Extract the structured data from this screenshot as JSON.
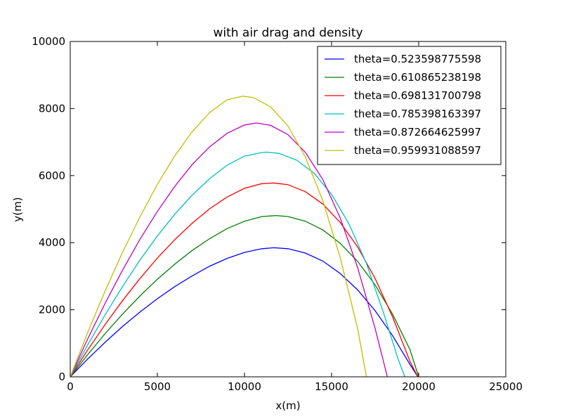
{
  "chart_data": {
    "type": "line",
    "title": "with air drag and density",
    "xlabel": "x(m)",
    "ylabel": "y(m)",
    "xlim": [
      0,
      25000
    ],
    "ylim": [
      0,
      10000
    ],
    "xticks": [
      0,
      5000,
      10000,
      15000,
      20000,
      25000
    ],
    "yticks": [
      0,
      2000,
      4000,
      6000,
      8000,
      10000
    ],
    "xtick_labels": [
      "0",
      "5000",
      "10000",
      "15000",
      "20000",
      "25000"
    ],
    "ytick_labels": [
      "0",
      "2000",
      "4000",
      "6000",
      "8000",
      "10000"
    ],
    "grid": false,
    "legend_position": "top-right",
    "series": [
      {
        "name": "theta=0.523598775598",
        "color": "#0000ff",
        "x": [
          0,
          1000,
          2000,
          3000,
          4000,
          5000,
          6000,
          7000,
          8000,
          9000,
          10000,
          11000,
          11700,
          12500,
          13500,
          14500,
          15500,
          16500,
          17500,
          18500,
          19500,
          19950
        ],
        "y": [
          0,
          530,
          1030,
          1500,
          1930,
          2330,
          2690,
          3010,
          3300,
          3530,
          3710,
          3820,
          3850,
          3820,
          3690,
          3450,
          3080,
          2590,
          1970,
          1230,
          370,
          0
        ]
      },
      {
        "name": "theta=0.610865238198",
        "color": "#008000",
        "x": [
          0,
          1000,
          2000,
          3000,
          4000,
          5000,
          6000,
          7000,
          8000,
          9000,
          10000,
          11000,
          11800,
          12500,
          13500,
          14500,
          15500,
          16500,
          17500,
          18500,
          19500,
          20000
        ],
        "y": [
          0,
          660,
          1290,
          1870,
          2410,
          2910,
          3360,
          3770,
          4120,
          4420,
          4640,
          4780,
          4810,
          4780,
          4640,
          4380,
          3980,
          3440,
          2740,
          1870,
          810,
          0
        ]
      },
      {
        "name": "theta=0.698131700798",
        "color": "#ff0000",
        "x": [
          0,
          1000,
          2000,
          3000,
          4000,
          5000,
          6000,
          7000,
          8000,
          9000,
          10000,
          11000,
          11700,
          12500,
          13500,
          14500,
          15500,
          16500,
          17500,
          18500,
          19500,
          19950
        ],
        "y": [
          0,
          800,
          1560,
          2270,
          2930,
          3540,
          4090,
          4580,
          5010,
          5360,
          5620,
          5760,
          5780,
          5730,
          5520,
          5150,
          4600,
          3870,
          2930,
          1790,
          460,
          0
        ]
      },
      {
        "name": "theta=0.785398163397",
        "color": "#00bfbf",
        "x": [
          0,
          1000,
          2000,
          3000,
          4000,
          5000,
          6000,
          7000,
          8000,
          9000,
          10000,
          11000,
          11300,
          12000,
          13000,
          14000,
          15000,
          16000,
          17000,
          18000,
          18800,
          19200
        ],
        "y": [
          0,
          950,
          1850,
          2690,
          3480,
          4200,
          4850,
          5420,
          5910,
          6310,
          6580,
          6690,
          6700,
          6660,
          6460,
          6070,
          5440,
          4560,
          3380,
          1880,
          560,
          0
        ]
      },
      {
        "name": "theta=0.872664625997",
        "color": "#bf00bf",
        "x": [
          0,
          1000,
          2000,
          3000,
          4000,
          5000,
          6000,
          7000,
          8000,
          9000,
          10000,
          10700,
          11500,
          12500,
          13500,
          14500,
          15500,
          16500,
          17500,
          18200
        ],
        "y": [
          0,
          1130,
          2190,
          3180,
          4100,
          4930,
          5680,
          6330,
          6860,
          7260,
          7510,
          7570,
          7500,
          7220,
          6690,
          5880,
          4730,
          3250,
          1440,
          0
        ]
      },
      {
        "name": "theta=0.959931088597",
        "color": "#bfbf00",
        "x": [
          0,
          1000,
          2000,
          3000,
          4000,
          5000,
          6000,
          7000,
          8000,
          9000,
          9900,
          10500,
          11500,
          12500,
          13500,
          14500,
          15500,
          16500,
          17000
        ],
        "y": [
          0,
          1320,
          2560,
          3710,
          4770,
          5740,
          6590,
          7310,
          7880,
          8260,
          8370,
          8330,
          8050,
          7480,
          6550,
          5250,
          3550,
          1430,
          0
        ]
      }
    ]
  }
}
